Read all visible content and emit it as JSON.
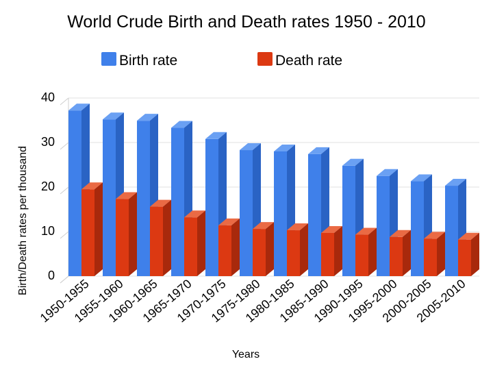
{
  "chart_data": {
    "type": "bar",
    "title": "World Crude Birth and Death rates 1950 - 2010",
    "xlabel": "Years",
    "ylabel": "Birth/Death rates per thousand",
    "ylim": [
      0,
      40
    ],
    "yticks": [
      0,
      10,
      20,
      30,
      40
    ],
    "legend_position": "top",
    "categories": [
      "1950-1955",
      "1955-1960",
      "1960-1965",
      "1965-1970",
      "1970-1975",
      "1975-1980",
      "1980-1985",
      "1985-1990",
      "1990-1995",
      "1995-2000",
      "2000-2005",
      "2005-2010"
    ],
    "series": [
      {
        "name": "Birth rate",
        "color": "#3f80ea",
        "side_color": "#2a63c4",
        "top_color": "#6aa0f3",
        "values": [
          37.2,
          35.2,
          34.9,
          33.3,
          30.8,
          28.3,
          28.0,
          27.4,
          24.8,
          22.5,
          21.3,
          20.3
        ]
      },
      {
        "name": "Death rate",
        "color": "#dc3912",
        "side_color": "#a8290c",
        "top_color": "#ea6a44",
        "values": [
          19.5,
          17.3,
          15.6,
          13.2,
          11.4,
          10.6,
          10.3,
          9.7,
          9.3,
          8.8,
          8.4,
          8.2
        ]
      }
    ]
  }
}
